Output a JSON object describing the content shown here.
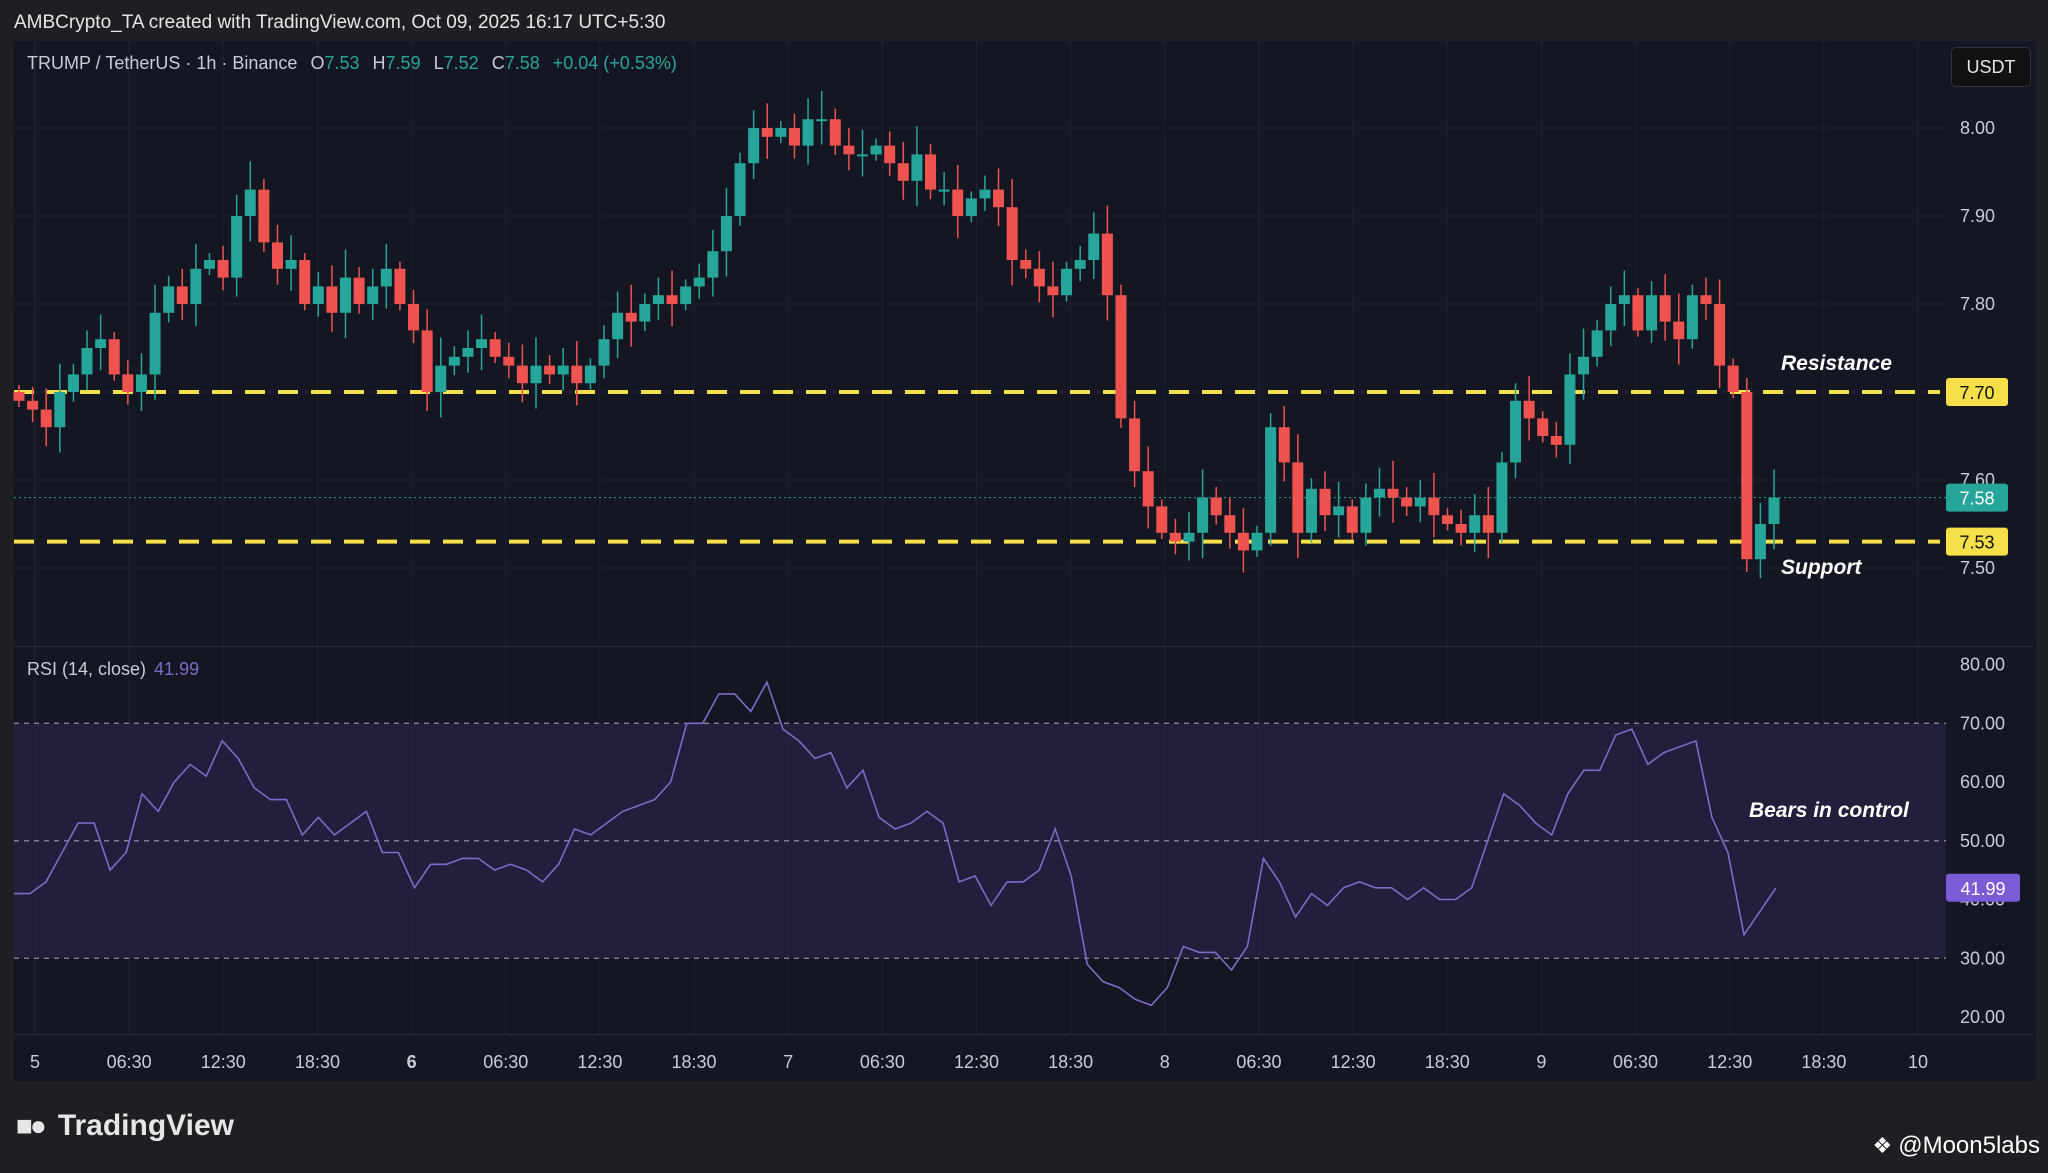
{
  "header": {
    "attribution": "AMBCrypto_TA created with TradingView.com, Oct 09, 2025 16:17 UTC+5:30"
  },
  "legend": {
    "symbol": "TRUMP / TetherUS · 1h · Binance",
    "open_label": "O",
    "open": "7.53",
    "high_label": "H",
    "high": "7.59",
    "low_label": "L",
    "low": "7.52",
    "close_label": "C",
    "close": "7.58",
    "change": "+0.04 (+0.53%)"
  },
  "currency_badge": "USDT",
  "annotations": {
    "resistance": "Resistance",
    "support": "Support",
    "rsi_note": "Bears in control"
  },
  "rsi_legend": {
    "label": "RSI (14, close)",
    "value": "41.99"
  },
  "footer": {
    "brand": "TradingView",
    "watermark": "@Moon5labs"
  },
  "colors": {
    "up": "#26a69a",
    "down": "#ef5350",
    "level": "#f5e04a",
    "rsi_line": "#7e6ac8",
    "rsi_band": "#2a2245",
    "background": "#141722"
  },
  "chart_data": [
    {
      "type": "candlestick",
      "timeframe": "1h",
      "price_range": [
        7.43,
        8.07
      ],
      "price_ticks": [
        "8.00",
        "7.90",
        "7.80",
        "7.70",
        "7.60",
        "7.50"
      ],
      "time_ticks": [
        "5",
        "06:30",
        "12:30",
        "18:30",
        "6",
        "06:30",
        "12:30",
        "18:30",
        "7",
        "06:30",
        "12:30",
        "18:30",
        "8",
        "06:30",
        "12:30",
        "18:30",
        "9",
        "06:30",
        "12:30",
        "18:30",
        "10"
      ],
      "levels": [
        {
          "name": "Resistance",
          "value": 7.7,
          "label": "7.70",
          "color": "#f5e04a"
        },
        {
          "name": "Support",
          "value": 7.53,
          "label": "7.53",
          "color": "#f5e04a"
        }
      ],
      "last_price": {
        "value": 7.58,
        "label": "7.58"
      },
      "closes": [
        7.69,
        7.68,
        7.66,
        7.7,
        7.72,
        7.75,
        7.76,
        7.72,
        7.7,
        7.72,
        7.79,
        7.82,
        7.8,
        7.84,
        7.85,
        7.83,
        7.9,
        7.93,
        7.87,
        7.84,
        7.85,
        7.8,
        7.82,
        7.79,
        7.83,
        7.8,
        7.82,
        7.84,
        7.8,
        7.77,
        7.7,
        7.73,
        7.74,
        7.75,
        7.76,
        7.74,
        7.73,
        7.71,
        7.73,
        7.72,
        7.73,
        7.71,
        7.73,
        7.76,
        7.79,
        7.78,
        7.8,
        7.81,
        7.8,
        7.82,
        7.83,
        7.86,
        7.9,
        7.96,
        8.0,
        7.99,
        8.0,
        7.98,
        8.01,
        8.01,
        7.98,
        7.97,
        7.97,
        7.98,
        7.96,
        7.94,
        7.97,
        7.93,
        7.93,
        7.9,
        7.92,
        7.93,
        7.91,
        7.85,
        7.84,
        7.82,
        7.81,
        7.84,
        7.85,
        7.88,
        7.81,
        7.67,
        7.61,
        7.57,
        7.54,
        7.53,
        7.54,
        7.58,
        7.56,
        7.54,
        7.52,
        7.54,
        7.66,
        7.62,
        7.54,
        7.59,
        7.56,
        7.57,
        7.54,
        7.58,
        7.59,
        7.58,
        7.57,
        7.58,
        7.56,
        7.55,
        7.54,
        7.56,
        7.54,
        7.62,
        7.69,
        7.67,
        7.65,
        7.64,
        7.72,
        7.74,
        7.77,
        7.8,
        7.81,
        7.77,
        7.81,
        7.78,
        7.76,
        7.81,
        7.8,
        7.73,
        7.7,
        7.51,
        7.55,
        7.58
      ]
    },
    {
      "type": "line",
      "indicator": "RSI (14, close)",
      "y_range": [
        15,
        85
      ],
      "y_ticks": [
        "80.00",
        "70.00",
        "60.00",
        "50.00",
        "40.00",
        "30.00",
        "20.00"
      ],
      "band": [
        30,
        70
      ],
      "midline": 50,
      "last_value": {
        "value": 41.99,
        "label": "41.99"
      },
      "values": [
        41,
        41,
        43,
        48,
        53,
        53,
        45,
        48,
        58,
        55,
        60,
        63,
        61,
        67,
        64,
        59,
        57,
        57,
        51,
        54,
        51,
        53,
        55,
        48,
        48,
        42,
        46,
        46,
        47,
        47,
        45,
        46,
        45,
        43,
        46,
        52,
        51,
        53,
        55,
        56,
        57,
        60,
        70,
        70,
        75,
        75,
        72,
        77,
        69,
        67,
        64,
        65,
        59,
        62,
        54,
        52,
        53,
        55,
        53,
        43,
        44,
        39,
        43,
        43,
        45,
        52,
        44,
        29,
        26,
        25,
        23,
        22,
        25,
        32,
        31,
        31,
        28,
        32,
        47,
        43,
        37,
        41,
        39,
        42,
        43,
        42,
        42,
        40,
        42,
        40,
        40,
        42,
        50,
        58,
        56,
        53,
        51,
        58,
        62,
        62,
        68,
        69,
        63,
        65,
        66,
        67,
        54,
        48,
        34,
        38,
        42
      ]
    }
  ]
}
